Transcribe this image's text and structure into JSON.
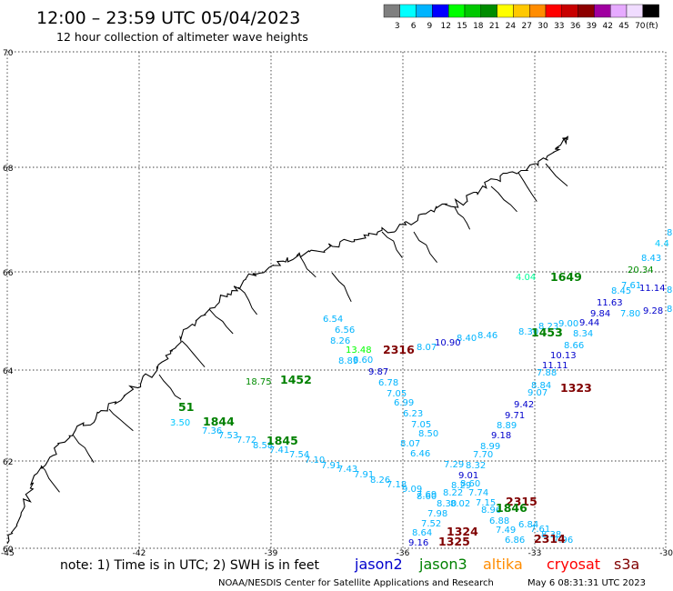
{
  "header": {
    "title": "12:00 – 23:59 UTC 05/04/2023",
    "subtitle": "12 hour collection of altimeter wave heights"
  },
  "color_scale": {
    "labels": [
      "3",
      "6",
      "9",
      "12",
      "15",
      "18",
      "21",
      "24",
      "27",
      "30",
      "33",
      "36",
      "39",
      "42",
      "45",
      "70",
      "(ft)"
    ],
    "colors": [
      "#7f7f7f",
      "#00ffff",
      "#00b4ff",
      "#0000ff",
      "#00ff00",
      "#00c800",
      "#008c00",
      "#ffff00",
      "#ffc800",
      "#ff8c00",
      "#ff0000",
      "#c80000",
      "#8c0000",
      "#a000a0",
      "#e6aaff",
      "#f0dcff",
      "#000000"
    ]
  },
  "axes": {
    "lat_labels": [
      "70",
      "68",
      "66",
      "64",
      "62",
      "60"
    ],
    "lon_labels": [
      "-45",
      "-42",
      "-39",
      "-36",
      "-33",
      "-30"
    ]
  },
  "colors": {
    "jason2": "#0000cc",
    "jason3": "#008000",
    "altika": "#ff8c00",
    "cryosat": "#ff0000",
    "s3a": "#800000"
  },
  "wave_values": [
    {
      "v": "8.",
      "c": "#00b4ff"
    },
    {
      "v": "4.4",
      "c": "#00c8ff"
    },
    {
      "v": "8.43",
      "c": "#00b4ff"
    },
    {
      "v": "20.34",
      "c": "#008c00"
    },
    {
      "v": "4.04",
      "c": "#00ff99"
    },
    {
      "v": "7.61",
      "c": "#00b4ff"
    },
    {
      "v": "8.45",
      "c": "#00b4ff"
    },
    {
      "v": "11.14",
      "c": "#0000cc"
    },
    {
      "v": "8.",
      "c": "#00b4ff"
    },
    {
      "v": "11.63",
      "c": "#0000cc"
    },
    {
      "v": "9.84",
      "c": "#0000cc"
    },
    {
      "v": "7.80",
      "c": "#00b4ff"
    },
    {
      "v": "9.28",
      "c": "#0000cc"
    },
    {
      "v": "8.",
      "c": "#00b4ff"
    },
    {
      "v": "9.44",
      "c": "#0000cc"
    },
    {
      "v": "9.00",
      "c": "#00b4ff"
    },
    {
      "v": "8.23",
      "c": "#00b4ff"
    },
    {
      "v": "8.34",
      "c": "#00b4ff"
    },
    {
      "v": "8.30",
      "c": "#00b4ff"
    },
    {
      "v": "8.66",
      "c": "#00b4ff"
    },
    {
      "v": "10.13",
      "c": "#0000cc"
    },
    {
      "v": "11.11",
      "c": "#0000cc"
    },
    {
      "v": "8.40",
      "c": "#00b4ff"
    },
    {
      "v": "8.46",
      "c": "#00b4ff"
    },
    {
      "v": "10.90",
      "c": "#0000cc"
    },
    {
      "v": "8.07",
      "c": "#00b4ff"
    },
    {
      "v": "6.54",
      "c": "#00b4ff"
    },
    {
      "v": "6.56",
      "c": "#00b4ff"
    },
    {
      "v": "8.26",
      "c": "#00b4ff"
    },
    {
      "v": "13.48",
      "c": "#00ff00"
    },
    {
      "v": "8.89",
      "c": "#00b4ff"
    },
    {
      "v": "8.60",
      "c": "#00b4ff"
    },
    {
      "v": "9.87",
      "c": "#0000cc"
    },
    {
      "v": "6.78",
      "c": "#00b4ff"
    },
    {
      "v": "7.05",
      "c": "#00b4ff"
    },
    {
      "v": "6.99",
      "c": "#00b4ff"
    },
    {
      "v": "6.23",
      "c": "#00b4ff"
    },
    {
      "v": "7.05",
      "c": "#00b4ff"
    },
    {
      "v": "8.50",
      "c": "#00b4ff"
    },
    {
      "v": "8.07",
      "c": "#00b4ff"
    },
    {
      "v": "6.46",
      "c": "#00b4ff"
    },
    {
      "v": "7.88",
      "c": "#00b4ff"
    },
    {
      "v": "8.84",
      "c": "#00b4ff"
    },
    {
      "v": "9.07",
      "c": "#00b4ff"
    },
    {
      "v": "9.42",
      "c": "#0000cc"
    },
    {
      "v": "9.71",
      "c": "#0000cc"
    },
    {
      "v": "8.89",
      "c": "#00b4ff"
    },
    {
      "v": "9.18",
      "c": "#0000cc"
    },
    {
      "v": "8.99",
      "c": "#00b4ff"
    },
    {
      "v": "7.70",
      "c": "#00b4ff"
    },
    {
      "v": "8.32",
      "c": "#00b4ff"
    },
    {
      "v": "7.29",
      "c": "#00b4ff"
    },
    {
      "v": "9.01",
      "c": "#0000cc"
    },
    {
      "v": "8.60",
      "c": "#00b4ff"
    },
    {
      "v": "8.29",
      "c": "#00b4ff"
    },
    {
      "v": "7.74",
      "c": "#00b4ff"
    },
    {
      "v": "7.69",
      "c": "#00b4ff"
    },
    {
      "v": "8.22",
      "c": "#00b4ff"
    },
    {
      "v": "8.30",
      "c": "#00b4ff"
    },
    {
      "v": "8.02",
      "c": "#00b4ff"
    },
    {
      "v": "7.15",
      "c": "#00b4ff"
    },
    {
      "v": "7.98",
      "c": "#00b4ff"
    },
    {
      "v": "8.96",
      "c": "#00b4ff"
    },
    {
      "v": "7.52",
      "c": "#00b4ff"
    },
    {
      "v": "6.88",
      "c": "#00b4ff"
    },
    {
      "v": "8.64",
      "c": "#00b4ff"
    },
    {
      "v": "7.49",
      "c": "#00b4ff"
    },
    {
      "v": "6.84",
      "c": "#00b4ff"
    },
    {
      "v": "6.86",
      "c": "#00b4ff"
    },
    {
      "v": "9.16",
      "c": "#0000cc"
    },
    {
      "v": "7.61",
      "c": "#00b4ff"
    },
    {
      "v": "8.38",
      "c": "#00b4ff"
    },
    {
      "v": "7.96",
      "c": "#00b4ff"
    },
    {
      "v": "18.75",
      "c": "#008c00"
    },
    {
      "v": "3.50",
      "c": "#00c8ff"
    },
    {
      "v": "7.36",
      "c": "#00b4ff"
    },
    {
      "v": "7.53",
      "c": "#00b4ff"
    },
    {
      "v": "7.72",
      "c": "#00b4ff"
    },
    {
      "v": "8.58",
      "c": "#00b4ff"
    },
    {
      "v": "7.41",
      "c": "#00b4ff"
    },
    {
      "v": "7.54",
      "c": "#00b4ff"
    },
    {
      "v": "7.10",
      "c": "#00b4ff"
    },
    {
      "v": "7.91",
      "c": "#00b4ff"
    },
    {
      "v": "7.43",
      "c": "#00b4ff"
    },
    {
      "v": "7.91",
      "c": "#00b4ff"
    },
    {
      "v": "8.26",
      "c": "#00b4ff"
    },
    {
      "v": "7.18",
      "c": "#00b4ff"
    },
    {
      "v": "9.09",
      "c": "#00b4ff"
    },
    {
      "v": "8.60",
      "c": "#00b4ff"
    }
  ],
  "time_labels": [
    {
      "t": "1649",
      "c": "#008000"
    },
    {
      "t": "1453",
      "c": "#008000"
    },
    {
      "t": "2316",
      "c": "#800000"
    },
    {
      "t": "1452",
      "c": "#008000"
    },
    {
      "t": "1323",
      "c": "#800000"
    },
    {
      "t": "51",
      "c": "#008000"
    },
    {
      "t": "1844",
      "c": "#008000"
    },
    {
      "t": "1845",
      "c": "#008000"
    },
    {
      "t": "2315",
      "c": "#800000"
    },
    {
      "t": "1846",
      "c": "#008000"
    },
    {
      "t": "1324",
      "c": "#800000"
    },
    {
      "t": "1325",
      "c": "#800000"
    },
    {
      "t": "2314",
      "c": "#800000"
    }
  ],
  "note": "note:  1) Time is in UTC;  2) SWH is in feet",
  "satellites": {
    "jason2": "jason2",
    "jason3": "jason3",
    "altika": "altika",
    "cryosat": "cryosat",
    "s3a": "s3a"
  },
  "footer": {
    "credit": "NOAA/NESDIS Center for Satellite Applications and Research",
    "timestamp": "May  6 08:31:31 UTC 2023"
  }
}
